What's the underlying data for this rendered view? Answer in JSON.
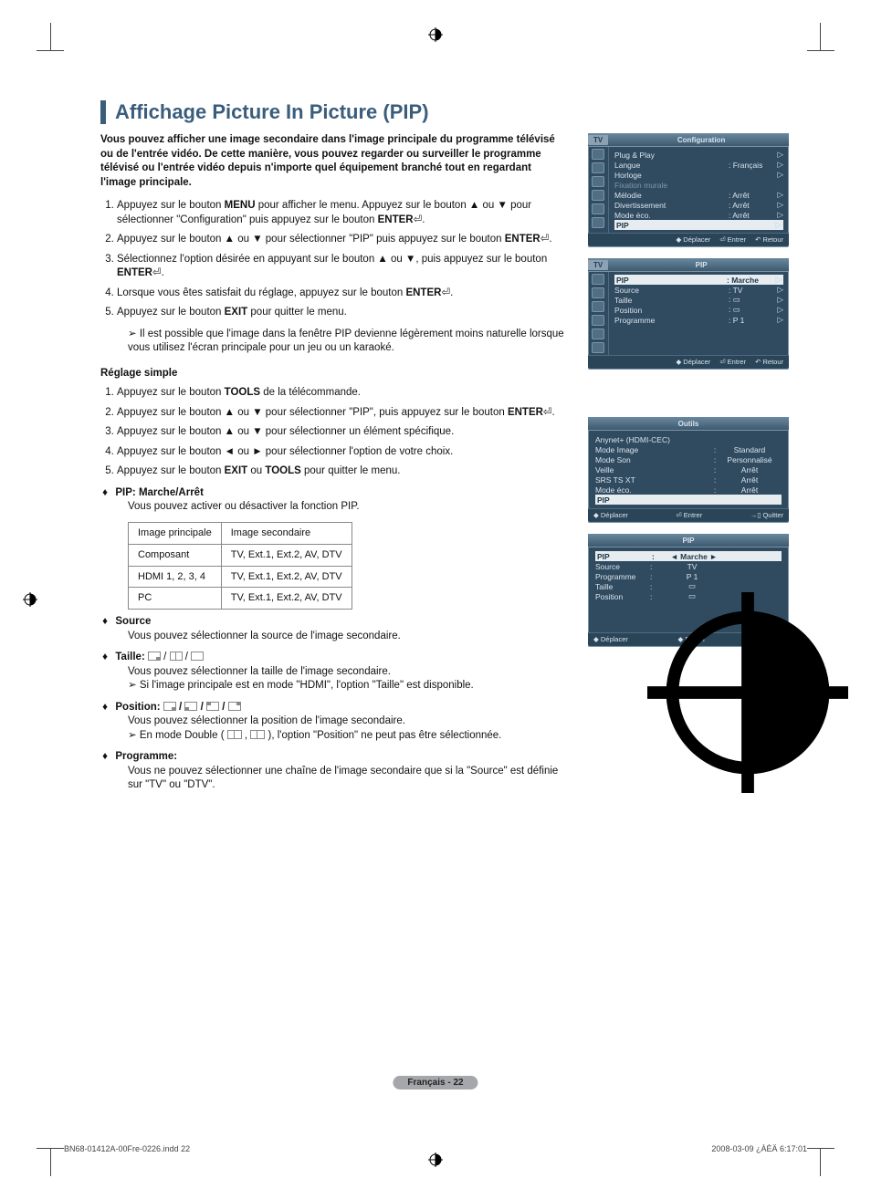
{
  "title": "Affichage Picture In Picture (PIP)",
  "intro": "Vous pouvez afficher une image secondaire dans l'image principale du programme télévisé ou de l'entrée vidéo. De cette manière, vous pouvez regarder ou surveiller le programme télévisé ou l'entrée vidéo depuis n'importe quel équipement branché tout en regardant l'image principale.",
  "steps1": [
    "Appuyez sur le bouton <b>MENU</b> pour afficher le menu. Appuyez sur le bouton ▲ ou ▼ pour sélectionner \"Configuration\" puis appuyez sur le bouton <b>ENTER</b>⏎.",
    "Appuyez sur le bouton ▲ ou ▼ pour sélectionner \"PIP\" puis appuyez sur le bouton <b>ENTER</b>⏎.",
    "Sélectionnez l'option désirée en appuyant sur le bouton ▲ ou ▼, puis appuyez sur le bouton <b>ENTER</b>⏎.",
    "Lorsque vous êtes satisfait du réglage, appuyez sur le bouton <b>ENTER</b>⏎.",
    "Appuyez sur le bouton <b>EXIT</b> pour quitter le menu."
  ],
  "note1": "Il est possible que l'image dans la fenêtre PIP devienne légèrement moins naturelle lorsque vous utilisez l'écran principale pour un jeu ou un karaoké.",
  "subhead2": "Réglage simple",
  "steps2": [
    "Appuyez sur le bouton <b>TOOLS</b> de la télécommande.",
    "Appuyez sur le bouton ▲ ou ▼ pour sélectionner \"PIP\", puis appuyez sur le bouton <b>ENTER</b>⏎.",
    "Appuyez sur le bouton ▲ ou ▼ pour sélectionner un élément spécifique.",
    "Appuyez sur le bouton ◄ ou ► pour sélectionner l'option de votre choix.",
    "Appuyez sur le bouton <b>EXIT</b> ou <b>TOOLS</b> pour quitter le menu."
  ],
  "pip_header": "PIP: Marche/Arrêt",
  "pip_desc": "Vous pouvez activer ou désactiver la fonction PIP.",
  "table": {
    "h1": "Image principale",
    "h2": "Image secondaire",
    "rows": [
      [
        "Composant",
        "TV, Ext.1, Ext.2, AV, DTV"
      ],
      [
        "HDMI 1, 2, 3, 4",
        "TV, Ext.1, Ext.2, AV, DTV"
      ],
      [
        "PC",
        "TV, Ext.1, Ext.2, AV, DTV"
      ]
    ]
  },
  "source_h": "Source",
  "source_t": "Vous pouvez sélectionner la source de l'image secondaire.",
  "taille_h": "Taille:",
  "taille_t": "Vous pouvez sélectionner la taille de l'image secondaire.",
  "taille_note": "Si l'image principale est en mode \"HDMI\", l'option \"Taille\" est disponible.",
  "position_h": "Position:",
  "position_t": "Vous pouvez sélectionner la position de l'image secondaire.",
  "position_note": "En mode Double  ( ",
  "position_note2": " ), l'option \"Position\" ne peut pas être sélectionnée.",
  "programme_h": "Programme:",
  "programme_t": "Vous ne pouvez sélectionner une chaîne de l'image secondaire que si la \"Source\" est définie sur \"TV\" ou \"DTV\".",
  "pagefoot": "Français - 22",
  "printL": "BN68-01412A-00Fre-0226.indd   22",
  "printR": "2008-03-09   ¿ÀÈÄ 6:17:01",
  "osd1": {
    "title": "Configuration",
    "tv": "TV",
    "rows": [
      {
        "k": "Plug & Play",
        "v": "",
        "arr": "▷",
        "dim": false
      },
      {
        "k": "Langue",
        "v": ": Français",
        "arr": "▷"
      },
      {
        "k": "Horloge",
        "v": "",
        "arr": "▷"
      },
      {
        "k": "Fixation murale",
        "v": "",
        "arr": "",
        "dim": true
      },
      {
        "k": "Mélodie",
        "v": ": Arrêt",
        "arr": "▷"
      },
      {
        "k": "Divertissement",
        "v": ": Arrêt",
        "arr": "▷"
      },
      {
        "k": "Mode éco.",
        "v": ": Arrêt",
        "arr": "▷"
      },
      {
        "k": "PIP",
        "v": "",
        "arr": "▷",
        "hl": true
      }
    ],
    "footer": [
      "◆ Déplacer",
      "⏎ Entrer",
      "↶ Retour"
    ]
  },
  "osd2": {
    "title": "PIP",
    "tv": "TV",
    "rows": [
      {
        "k": "PIP",
        "v": ": Marche",
        "arr": "▷",
        "hl": true
      },
      {
        "k": "Source",
        "v": ": TV",
        "arr": "▷"
      },
      {
        "k": "Taille",
        "v": ": ▭",
        "arr": "▷"
      },
      {
        "k": "Position",
        "v": ": ▭",
        "arr": "▷"
      },
      {
        "k": "Programme",
        "v": ": P 1",
        "arr": "▷"
      }
    ],
    "footer": [
      "◆ Déplacer",
      "⏎ Entrer",
      "↶ Retour"
    ]
  },
  "osd3": {
    "title": "Outils",
    "rows": [
      {
        "k": "Anynet+ (HDMI-CEC)",
        "v": ""
      },
      {
        "k": "Mode Image",
        "v": "Standard"
      },
      {
        "k": "Mode Son",
        "v": "Personnalisé"
      },
      {
        "k": "Veille",
        "v": "Arrêt"
      },
      {
        "k": "SRS TS XT",
        "v": "Arrêt"
      },
      {
        "k": "Mode éco.",
        "v": "Arrêt"
      },
      {
        "k": "PIP",
        "v": "",
        "hl": true
      }
    ],
    "footer": [
      "◆ Déplacer",
      "⏎ Entrer",
      "→▯ Quitter"
    ]
  },
  "osd4": {
    "title": "PIP",
    "rows": [
      {
        "k": "PIP",
        "v": "◄     Marche     ►",
        "hl": true
      },
      {
        "k": "Source",
        "v": "TV"
      },
      {
        "k": "Programme",
        "v": "P 1"
      },
      {
        "k": "Taille",
        "v": "▭"
      },
      {
        "k": "Position",
        "v": "▭"
      }
    ],
    "footer": [
      "◆ Déplacer",
      "◆ Régler",
      "↶ Retour"
    ]
  }
}
